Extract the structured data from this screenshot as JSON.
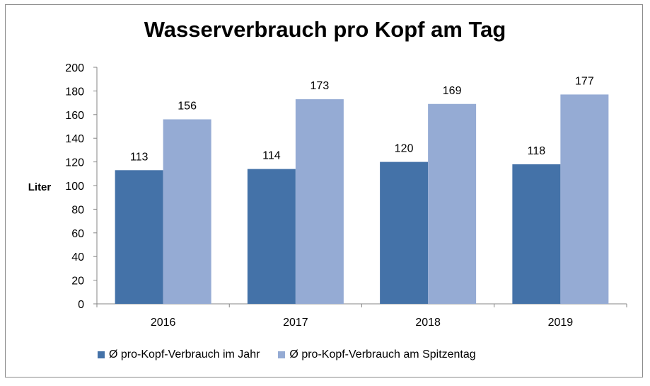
{
  "chart_data": {
    "type": "bar",
    "title": "Wasserverbrauch pro Kopf am Tag",
    "ylabel": "Liter",
    "xlabel": "",
    "categories": [
      "2016",
      "2017",
      "2018",
      "2019"
    ],
    "ylim": [
      0,
      200
    ],
    "yticks": [
      0,
      20,
      40,
      60,
      80,
      100,
      120,
      140,
      160,
      180,
      200
    ],
    "grid": false,
    "legend_position": "bottom",
    "series": [
      {
        "name": "Ø pro-Kopf-Verbrauch im Jahr",
        "values": [
          113,
          114,
          120,
          118
        ],
        "color": "#4472a8"
      },
      {
        "name": "Ø pro-Kopf-Verbrauch am Spitzentag",
        "values": [
          156,
          173,
          169,
          177
        ],
        "color": "#95abd4"
      }
    ]
  }
}
